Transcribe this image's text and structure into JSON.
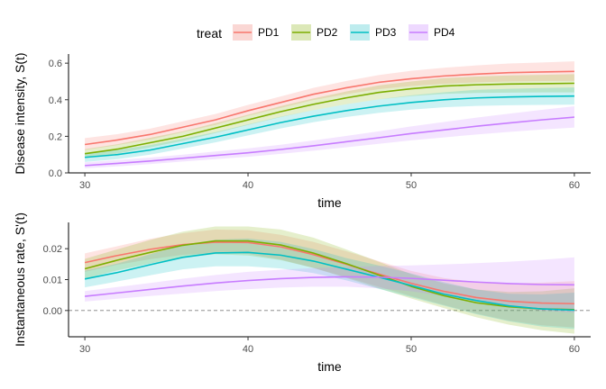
{
  "legend": {
    "title": "treat",
    "position": "top",
    "entries": [
      {
        "label": "PD1",
        "color": "#F8766D",
        "fill": "#F8C9C5"
      },
      {
        "label": "PD2",
        "color": "#7CAE00",
        "fill": "#D0E0A0"
      },
      {
        "label": "PD3",
        "color": "#00BFC4",
        "fill": "#A8E6E8"
      },
      {
        "label": "PD4",
        "color": "#C77CFF",
        "fill": "#E8CCFF"
      }
    ]
  },
  "chart_data": [
    {
      "type": "line",
      "xlabel": "time",
      "ylabel": "Disease intensity, S(t)",
      "xlim": [
        29,
        61
      ],
      "ylim": [
        0,
        0.65
      ],
      "xticks": [
        30,
        40,
        50,
        60
      ],
      "yticks": [
        0.0,
        0.2,
        0.4,
        0.6
      ],
      "ytick_labels": [
        "0.0",
        "0.2",
        "0.4",
        "0.6"
      ],
      "grid": false,
      "x": [
        30,
        32,
        34,
        36,
        38,
        40,
        42,
        44,
        46,
        48,
        50,
        52,
        54,
        56,
        58,
        60
      ],
      "series": [
        {
          "name": "PD1",
          "values": [
            0.155,
            0.18,
            0.21,
            0.25,
            0.29,
            0.34,
            0.385,
            0.43,
            0.465,
            0.495,
            0.515,
            0.53,
            0.54,
            0.548,
            0.552,
            0.555
          ],
          "lower": [
            0.125,
            0.152,
            0.182,
            0.222,
            0.262,
            0.312,
            0.355,
            0.398,
            0.43,
            0.458,
            0.475,
            0.487,
            0.495,
            0.5,
            0.502,
            0.503
          ],
          "upper": [
            0.19,
            0.212,
            0.242,
            0.282,
            0.322,
            0.372,
            0.418,
            0.465,
            0.502,
            0.535,
            0.558,
            0.575,
            0.588,
            0.598,
            0.604,
            0.61
          ]
        },
        {
          "name": "PD2",
          "values": [
            0.105,
            0.13,
            0.165,
            0.2,
            0.245,
            0.29,
            0.335,
            0.375,
            0.41,
            0.44,
            0.46,
            0.475,
            0.482,
            0.486,
            0.488,
            0.49
          ],
          "lower": [
            0.08,
            0.105,
            0.14,
            0.175,
            0.218,
            0.262,
            0.305,
            0.343,
            0.375,
            0.402,
            0.42,
            0.432,
            0.437,
            0.439,
            0.44,
            0.44
          ],
          "upper": [
            0.13,
            0.157,
            0.192,
            0.227,
            0.272,
            0.318,
            0.365,
            0.407,
            0.445,
            0.478,
            0.5,
            0.518,
            0.527,
            0.533,
            0.536,
            0.54
          ]
        },
        {
          "name": "PD3",
          "values": [
            0.085,
            0.1,
            0.125,
            0.16,
            0.195,
            0.235,
            0.275,
            0.31,
            0.34,
            0.365,
            0.385,
            0.4,
            0.41,
            0.415,
            0.418,
            0.42
          ],
          "lower": [
            0.06,
            0.075,
            0.1,
            0.133,
            0.167,
            0.205,
            0.243,
            0.277,
            0.305,
            0.328,
            0.346,
            0.359,
            0.366,
            0.37,
            0.372,
            0.373
          ],
          "upper": [
            0.11,
            0.127,
            0.152,
            0.187,
            0.223,
            0.265,
            0.307,
            0.343,
            0.375,
            0.402,
            0.424,
            0.441,
            0.454,
            0.46,
            0.464,
            0.467
          ]
        },
        {
          "name": "PD4",
          "values": [
            0.04,
            0.052,
            0.065,
            0.08,
            0.095,
            0.11,
            0.128,
            0.148,
            0.17,
            0.192,
            0.215,
            0.235,
            0.255,
            0.273,
            0.29,
            0.305
          ],
          "lower": [
            0.025,
            0.036,
            0.048,
            0.062,
            0.075,
            0.088,
            0.104,
            0.121,
            0.14,
            0.159,
            0.178,
            0.194,
            0.21,
            0.224,
            0.237,
            0.248
          ],
          "upper": [
            0.058,
            0.07,
            0.084,
            0.1,
            0.117,
            0.134,
            0.154,
            0.177,
            0.202,
            0.227,
            0.254,
            0.278,
            0.302,
            0.324,
            0.345,
            0.364
          ]
        }
      ]
    },
    {
      "type": "line",
      "xlabel": "time",
      "ylabel": "Instantaneous rate, S'(t)",
      "xlim": [
        29,
        61
      ],
      "ylim": [
        -0.0085,
        0.0285
      ],
      "xticks": [
        30,
        40,
        50,
        60
      ],
      "yticks": [
        0.0,
        0.01,
        0.02
      ],
      "ytick_labels": [
        "0.00",
        "0.01",
        "0.02"
      ],
      "grid": false,
      "reference_line": {
        "y": 0.0,
        "style": "dashed"
      },
      "x": [
        30,
        32,
        34,
        36,
        38,
        40,
        42,
        44,
        46,
        48,
        50,
        52,
        54,
        56,
        58,
        60
      ],
      "series": [
        {
          "name": "PD1",
          "values": [
            0.0155,
            0.0178,
            0.0198,
            0.0213,
            0.0221,
            0.022,
            0.0206,
            0.0181,
            0.015,
            0.0118,
            0.0088,
            0.0062,
            0.0042,
            0.003,
            0.0024,
            0.0022
          ],
          "lower": [
            0.0125,
            0.0148,
            0.0166,
            0.018,
            0.0186,
            0.0183,
            0.0165,
            0.0138,
            0.0108,
            0.0077,
            0.0047,
            0.0018,
            -0.001,
            -0.0033,
            -0.0048,
            -0.0055
          ],
          "upper": [
            0.0185,
            0.0208,
            0.0232,
            0.025,
            0.0262,
            0.026,
            0.0245,
            0.0222,
            0.0192,
            0.016,
            0.0128,
            0.0105,
            0.0092,
            0.0088,
            0.009,
            0.0095
          ]
        },
        {
          "name": "PD2",
          "values": [
            0.0135,
            0.0163,
            0.0188,
            0.0211,
            0.0225,
            0.0225,
            0.0212,
            0.0186,
            0.0152,
            0.0115,
            0.0078,
            0.0048,
            0.0025,
            0.0012,
            0.0005,
            0.0003
          ],
          "lower": [
            0.0103,
            0.013,
            0.0152,
            0.0172,
            0.0182,
            0.0178,
            0.0163,
            0.0138,
            0.0106,
            0.0072,
            0.0039,
            0.0008,
            -0.0022,
            -0.0046,
            -0.0064,
            -0.0075
          ],
          "upper": [
            0.0167,
            0.0198,
            0.0228,
            0.0255,
            0.0272,
            0.0272,
            0.0262,
            0.0236,
            0.0198,
            0.0158,
            0.0118,
            0.0088,
            0.0068,
            0.006,
            0.0062,
            0.0072
          ]
        },
        {
          "name": "PD3",
          "values": [
            0.0102,
            0.0123,
            0.0148,
            0.0172,
            0.0186,
            0.0188,
            0.0179,
            0.016,
            0.0134,
            0.0108,
            0.0081,
            0.0053,
            0.0032,
            0.0015,
            0.0005,
            0.0001
          ],
          "lower": [
            0.0075,
            0.0094,
            0.0114,
            0.0133,
            0.0143,
            0.0143,
            0.0136,
            0.0121,
            0.0098,
            0.007,
            0.0043,
            0.0016,
            -0.0012,
            -0.0035,
            -0.0052,
            -0.006
          ],
          "upper": [
            0.0129,
            0.0152,
            0.0182,
            0.0211,
            0.0229,
            0.0233,
            0.0222,
            0.0199,
            0.017,
            0.0146,
            0.012,
            0.0092,
            0.0068,
            0.0054,
            0.0052,
            0.0058
          ]
        },
        {
          "name": "PD4",
          "values": [
            0.0046,
            0.0057,
            0.0068,
            0.0079,
            0.0089,
            0.0097,
            0.0103,
            0.0107,
            0.0109,
            0.0108,
            0.0104,
            0.0098,
            0.0092,
            0.0087,
            0.0084,
            0.0083
          ],
          "lower": [
            0.0029,
            0.0038,
            0.0047,
            0.0055,
            0.0063,
            0.0069,
            0.0074,
            0.0077,
            0.0077,
            0.0072,
            0.0062,
            0.0047,
            0.0029,
            0.0012,
            0.0,
            -0.0007
          ],
          "upper": [
            0.0063,
            0.0076,
            0.0089,
            0.0103,
            0.0115,
            0.0125,
            0.0132,
            0.0137,
            0.0141,
            0.0144,
            0.0146,
            0.0149,
            0.0153,
            0.0158,
            0.0164,
            0.0172
          ]
        }
      ]
    }
  ]
}
